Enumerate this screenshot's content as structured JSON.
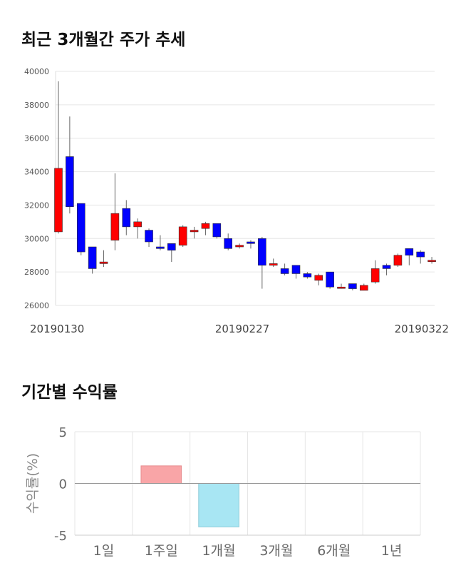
{
  "titles": {
    "price_trend": "최근 3개월간 주가 추세",
    "period_returns": "기간별 수익률"
  },
  "colors": {
    "up": "#ff0000",
    "down": "#0000ff",
    "positive_bar": "#f9a5a7",
    "negative_bar": "#a8e6f3",
    "grid": "#e6e6e6"
  },
  "chart_data": [
    {
      "type": "candlestick",
      "title": "최근 3개월간 주가 추세",
      "ylim": [
        26000,
        40000
      ],
      "yticks": [
        "40000",
        "38000",
        "36000",
        "34000",
        "32000",
        "30000",
        "28000",
        "26000"
      ],
      "xtick_labels": [
        {
          "index": 0,
          "label": "20190130"
        },
        {
          "index": 16,
          "label": "20190227"
        },
        {
          "index": 33,
          "label": "20190322"
        }
      ],
      "candles": [
        {
          "o": 30400,
          "c": 34200,
          "h": 39400,
          "l": 30300
        },
        {
          "o": 34900,
          "c": 31900,
          "h": 37300,
          "l": 31500
        },
        {
          "o": 32100,
          "c": 29200,
          "h": 32100,
          "l": 29000
        },
        {
          "o": 29500,
          "c": 28200,
          "h": 29500,
          "l": 27900
        },
        {
          "o": 28500,
          "c": 28600,
          "h": 29300,
          "l": 28300
        },
        {
          "o": 29900,
          "c": 31500,
          "h": 33900,
          "l": 29300
        },
        {
          "o": 31800,
          "c": 30700,
          "h": 32300,
          "l": 30200
        },
        {
          "o": 30700,
          "c": 31000,
          "h": 31200,
          "l": 30000
        },
        {
          "o": 30500,
          "c": 29800,
          "h": 30600,
          "l": 29500
        },
        {
          "o": 29500,
          "c": 29400,
          "h": 30200,
          "l": 29300
        },
        {
          "o": 29700,
          "c": 29300,
          "h": 29700,
          "l": 28600
        },
        {
          "o": 29600,
          "c": 30700,
          "h": 30800,
          "l": 29500
        },
        {
          "o": 30400,
          "c": 30500,
          "h": 30700,
          "l": 30000
        },
        {
          "o": 30600,
          "c": 30900,
          "h": 31000,
          "l": 30200
        },
        {
          "o": 30900,
          "c": 30100,
          "h": 30900,
          "l": 30000
        },
        {
          "o": 30000,
          "c": 29400,
          "h": 30300,
          "l": 29300
        },
        {
          "o": 29500,
          "c": 29600,
          "h": 29700,
          "l": 29400
        },
        {
          "o": 29800,
          "c": 29700,
          "h": 29900,
          "l": 29400
        },
        {
          "o": 30000,
          "c": 28400,
          "h": 30100,
          "l": 27000
        },
        {
          "o": 28400,
          "c": 28500,
          "h": 28800,
          "l": 28300
        },
        {
          "o": 28200,
          "c": 27900,
          "h": 28500,
          "l": 27800
        },
        {
          "o": 28400,
          "c": 27900,
          "h": 28400,
          "l": 27600
        },
        {
          "o": 27900,
          "c": 27700,
          "h": 28000,
          "l": 27600
        },
        {
          "o": 27500,
          "c": 27800,
          "h": 27900,
          "l": 27200
        },
        {
          "o": 28000,
          "c": 27100,
          "h": 28000,
          "l": 27000
        },
        {
          "o": 27100,
          "c": 27100,
          "h": 27300,
          "l": 27000
        },
        {
          "o": 27300,
          "c": 27000,
          "h": 27300,
          "l": 26900
        },
        {
          "o": 26900,
          "c": 27200,
          "h": 27300,
          "l": 26900
        },
        {
          "o": 27400,
          "c": 28200,
          "h": 28700,
          "l": 27300
        },
        {
          "o": 28400,
          "c": 28200,
          "h": 28500,
          "l": 27800
        },
        {
          "o": 28400,
          "c": 29000,
          "h": 29100,
          "l": 28300
        },
        {
          "o": 29400,
          "c": 29000,
          "h": 29400,
          "l": 28400
        },
        {
          "o": 29200,
          "c": 28900,
          "h": 29300,
          "l": 28500
        },
        {
          "o": 28700,
          "c": 28700,
          "h": 28900,
          "l": 28500
        }
      ]
    },
    {
      "type": "bar",
      "title": "기간별 수익률",
      "ylabel": "수익률(%)",
      "ylim": [
        -5,
        5
      ],
      "yticks": [
        "5",
        "0",
        "-5"
      ],
      "categories": [
        "1일",
        "1주일",
        "1개월",
        "3개월",
        "6개월",
        "1년"
      ],
      "values": [
        0,
        1.7,
        -4.2,
        0,
        0,
        0
      ]
    }
  ]
}
